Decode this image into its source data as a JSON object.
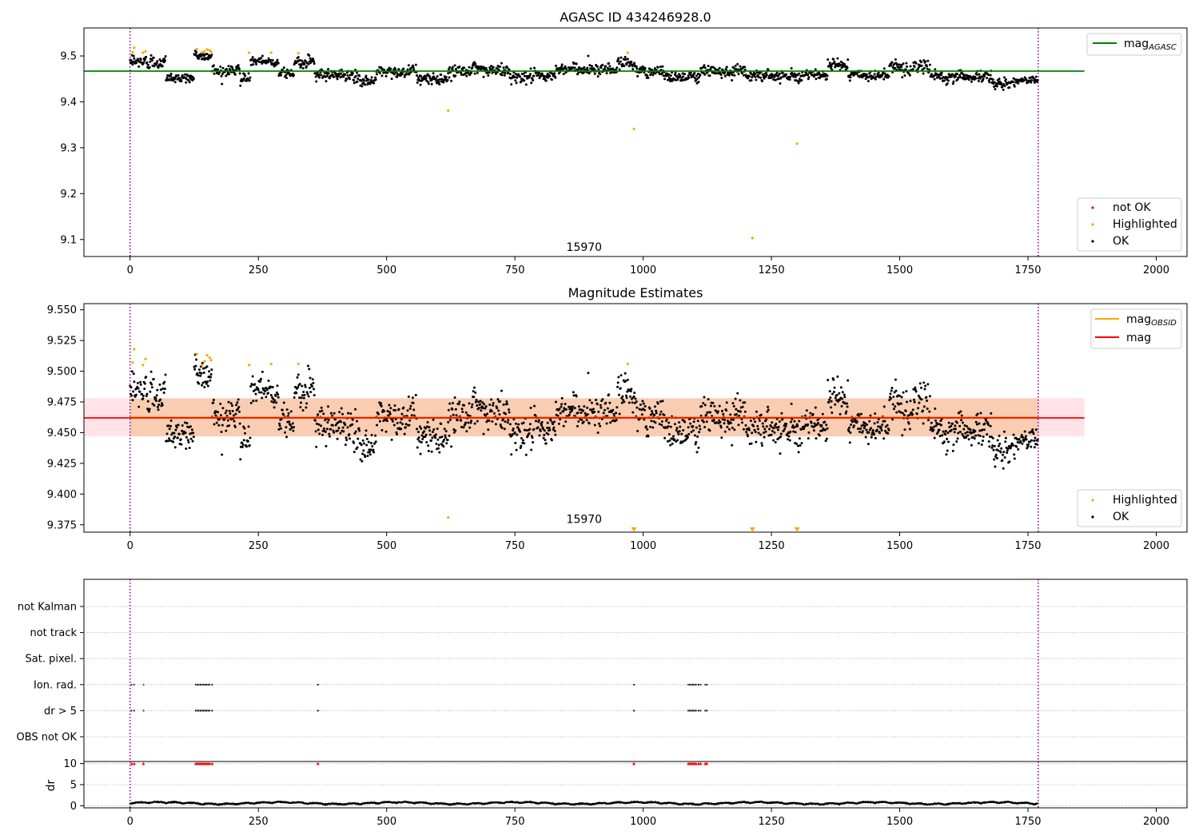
{
  "colors": {
    "ok": "#000000",
    "highlighted": "#ffa500",
    "not_ok": "#ff0000",
    "mag_agasc": "#008000",
    "mag": "#ff0000",
    "mag_obsid": "#ffa500",
    "band_fill": "#ffc0cb",
    "band_inner": "#f7c9a8",
    "obs_boundary": "#800080",
    "grid": "#b0b0b0"
  },
  "figure_title": "AGASC ID 434246928.0",
  "chart_data": [
    {
      "type": "scatter",
      "title": "AGASC ID 434246928.0",
      "xlim": [
        -90,
        2060
      ],
      "ylim": [
        9.063,
        9.561
      ],
      "xticks": [
        0,
        250,
        500,
        750,
        1000,
        1250,
        1500,
        1750,
        2000
      ],
      "xtick_labels": [
        "0",
        "250",
        "500",
        "750",
        "1000",
        "1250",
        "1500",
        "1750",
        "2000"
      ],
      "yticks": [
        9.1,
        9.2,
        9.3,
        9.4,
        9.5
      ],
      "ytick_labels": [
        "9.1",
        "9.2",
        "9.3",
        "9.4",
        "9.5"
      ],
      "obs_boundaries": [
        0,
        1770
      ],
      "obs_label": {
        "text": "15970",
        "x": 885,
        "y": 9.075
      },
      "lines": [
        {
          "name": "mag_AGASC",
          "label_main": "mag",
          "label_sub": "AGASC",
          "y": 9.467,
          "x": [
            -90,
            1860
          ],
          "color_key": "mag_agasc"
        }
      ],
      "ok_series": {
        "n": 1770,
        "segments": [
          {
            "x": [
              0,
              70
            ],
            "mean": 9.487,
            "spread": 0.012
          },
          {
            "x": [
              70,
              125
            ],
            "mean": 9.452,
            "spread": 0.009
          },
          {
            "x": [
              125,
              160
            ],
            "mean": 9.5,
            "spread": 0.008
          },
          {
            "x": [
              160,
              215
            ],
            "mean": 9.468,
            "spread": 0.01
          },
          {
            "x": [
              215,
              235
            ],
            "mean": 9.45,
            "spread": 0.008
          },
          {
            "x": [
              235,
              290
            ],
            "mean": 9.488,
            "spread": 0.007
          },
          {
            "x": [
              290,
              320
            ],
            "mean": 9.463,
            "spread": 0.008
          },
          {
            "x": [
              320,
              360
            ],
            "mean": 9.487,
            "spread": 0.01
          },
          {
            "x": [
              360,
              440
            ],
            "mean": 9.458,
            "spread": 0.009
          },
          {
            "x": [
              440,
              480
            ],
            "mean": 9.446,
            "spread": 0.009
          },
          {
            "x": [
              480,
              560
            ],
            "mean": 9.466,
            "spread": 0.01
          },
          {
            "x": [
              560,
              620
            ],
            "mean": 9.45,
            "spread": 0.009
          },
          {
            "x": [
              620,
              740
            ],
            "mean": 9.468,
            "spread": 0.011
          },
          {
            "x": [
              740,
              830
            ],
            "mean": 9.455,
            "spread": 0.01
          },
          {
            "x": [
              830,
              950
            ],
            "mean": 9.472,
            "spread": 0.011
          },
          {
            "x": [
              950,
              985
            ],
            "mean": 9.485,
            "spread": 0.01
          },
          {
            "x": [
              985,
              1040
            ],
            "mean": 9.466,
            "spread": 0.012
          },
          {
            "x": [
              1040,
              1110
            ],
            "mean": 9.455,
            "spread": 0.009
          },
          {
            "x": [
              1110,
              1200
            ],
            "mean": 9.468,
            "spread": 0.01
          },
          {
            "x": [
              1200,
              1360
            ],
            "mean": 9.458,
            "spread": 0.009
          },
          {
            "x": [
              1360,
              1400
            ],
            "mean": 9.48,
            "spread": 0.01
          },
          {
            "x": [
              1400,
              1480
            ],
            "mean": 9.458,
            "spread": 0.009
          },
          {
            "x": [
              1480,
              1560
            ],
            "mean": 9.475,
            "spread": 0.012
          },
          {
            "x": [
              1560,
              1680
            ],
            "mean": 9.455,
            "spread": 0.01
          },
          {
            "x": [
              1680,
              1725
            ],
            "mean": 9.44,
            "spread": 0.009
          },
          {
            "x": [
              1725,
              1770
            ],
            "mean": 9.448,
            "spread": 0.007
          }
        ]
      },
      "highlighted": {
        "x": [
          5,
          8,
          25,
          30,
          130,
          140,
          145,
          150,
          155,
          158,
          232,
          275,
          328,
          620,
          970,
          982,
          1213,
          1300
        ],
        "y": [
          9.508,
          9.518,
          9.507,
          9.51,
          9.515,
          9.508,
          9.51,
          9.514,
          9.512,
          9.509,
          9.507,
          9.507,
          9.506,
          9.381,
          9.507,
          9.341,
          9.103,
          9.309
        ]
      },
      "legend_lines": [
        {
          "label_main": "mag",
          "label_sub": "AGASC",
          "color_key": "mag_agasc"
        }
      ],
      "legend_points": [
        {
          "label": "not OK",
          "color_key": "not_ok"
        },
        {
          "label": "Highlighted",
          "color_key": "highlighted"
        },
        {
          "label": "OK",
          "color_key": "ok"
        }
      ]
    },
    {
      "type": "scatter",
      "title": "Magnitude Estimates",
      "xlim": [
        -90,
        2060
      ],
      "ylim": [
        9.369,
        9.555
      ],
      "xticks": [
        0,
        250,
        500,
        750,
        1000,
        1250,
        1500,
        1750,
        2000
      ],
      "xtick_labels": [
        "0",
        "250",
        "500",
        "750",
        "1000",
        "1250",
        "1500",
        "1750",
        "2000"
      ],
      "yticks": [
        9.375,
        9.4,
        9.425,
        9.45,
        9.475,
        9.5,
        9.525,
        9.55
      ],
      "ytick_labels": [
        "9.375",
        "9.400",
        "9.425",
        "9.450",
        "9.475",
        "9.500",
        "9.525",
        "9.550"
      ],
      "obs_boundaries": [
        0,
        1770
      ],
      "obs_label": {
        "text": "15970",
        "x": 885,
        "y": 9.3765
      },
      "band": {
        "x": [
          -90,
          1860
        ],
        "y": [
          9.447,
          9.478
        ],
        "color_key": "band_fill"
      },
      "band_inner": {
        "x": [
          0,
          1770
        ],
        "y": [
          9.447,
          9.478
        ],
        "color_key": "band_inner"
      },
      "lines": [
        {
          "name": "mag_OBSID",
          "label_main": "mag",
          "label_sub": "OBSID",
          "y": 9.4625,
          "x": [
            0,
            1770
          ],
          "color_key": "mag_obsid"
        },
        {
          "name": "mag",
          "label_main": "mag",
          "label_sub": "",
          "y": 9.462,
          "x": [
            -90,
            1860
          ],
          "color_key": "mag"
        }
      ],
      "ok_series": {
        "n": 1770,
        "segments": [
          {
            "x": [
              0,
              70
            ],
            "mean": 9.483,
            "spread": 0.014
          },
          {
            "x": [
              70,
              125
            ],
            "mean": 9.449,
            "spread": 0.011
          },
          {
            "x": [
              125,
              160
            ],
            "mean": 9.498,
            "spread": 0.011
          },
          {
            "x": [
              160,
              215
            ],
            "mean": 9.464,
            "spread": 0.011
          },
          {
            "x": [
              215,
              235
            ],
            "mean": 9.443,
            "spread": 0.008
          },
          {
            "x": [
              235,
              290
            ],
            "mean": 9.484,
            "spread": 0.009
          },
          {
            "x": [
              290,
              320
            ],
            "mean": 9.46,
            "spread": 0.01
          },
          {
            "x": [
              320,
              360
            ],
            "mean": 9.485,
            "spread": 0.012
          },
          {
            "x": [
              360,
              440
            ],
            "mean": 9.455,
            "spread": 0.011
          },
          {
            "x": [
              440,
              480
            ],
            "mean": 9.44,
            "spread": 0.01
          },
          {
            "x": [
              480,
              560
            ],
            "mean": 9.463,
            "spread": 0.012
          },
          {
            "x": [
              560,
              620
            ],
            "mean": 9.447,
            "spread": 0.01
          },
          {
            "x": [
              620,
              740
            ],
            "mean": 9.465,
            "spread": 0.013
          },
          {
            "x": [
              740,
              830
            ],
            "mean": 9.451,
            "spread": 0.011
          },
          {
            "x": [
              830,
              950
            ],
            "mean": 9.468,
            "spread": 0.012
          },
          {
            "x": [
              950,
              985
            ],
            "mean": 9.483,
            "spread": 0.012
          },
          {
            "x": [
              985,
              1040
            ],
            "mean": 9.463,
            "spread": 0.014
          },
          {
            "x": [
              1040,
              1110
            ],
            "mean": 9.452,
            "spread": 0.011
          },
          {
            "x": [
              1110,
              1200
            ],
            "mean": 9.465,
            "spread": 0.012
          },
          {
            "x": [
              1200,
              1360
            ],
            "mean": 9.455,
            "spread": 0.011
          },
          {
            "x": [
              1360,
              1400
            ],
            "mean": 9.478,
            "spread": 0.012
          },
          {
            "x": [
              1400,
              1480
            ],
            "mean": 9.455,
            "spread": 0.01
          },
          {
            "x": [
              1480,
              1560
            ],
            "mean": 9.473,
            "spread": 0.014
          },
          {
            "x": [
              1560,
              1680
            ],
            "mean": 9.452,
            "spread": 0.011
          },
          {
            "x": [
              1680,
              1725
            ],
            "mean": 9.436,
            "spread": 0.01
          },
          {
            "x": [
              1725,
              1770
            ],
            "mean": 9.445,
            "spread": 0.008
          }
        ]
      },
      "highlighted": {
        "x": [
          5,
          8,
          25,
          30,
          130,
          140,
          145,
          150,
          155,
          158,
          232,
          275,
          328,
          620,
          970
        ],
        "y": [
          9.507,
          9.518,
          9.505,
          9.51,
          9.514,
          9.505,
          9.508,
          9.513,
          9.511,
          9.509,
          9.505,
          9.506,
          9.506,
          9.381,
          9.506
        ]
      },
      "off_scale_markers": {
        "x": [
          982,
          1213,
          1300
        ],
        "color_key": "highlighted"
      },
      "legend_lines": [
        {
          "label_main": "mag",
          "label_sub": "OBSID",
          "color_key": "mag_obsid"
        },
        {
          "label_main": "mag",
          "label_sub": "",
          "color_key": "mag"
        }
      ],
      "legend_points": [
        {
          "label": "Highlighted",
          "color_key": "highlighted"
        },
        {
          "label": "OK",
          "color_key": "ok"
        }
      ]
    },
    {
      "type": "scatter",
      "title": "",
      "xlim": [
        -90,
        2060
      ],
      "obs_boundaries": [
        0,
        1770
      ],
      "xticks": [
        0,
        250,
        500,
        750,
        1000,
        1250,
        1500,
        1750,
        2000
      ],
      "xtick_labels": [
        "0",
        "250",
        "500",
        "750",
        "1000",
        "1250",
        "1500",
        "1750",
        "2000"
      ],
      "flag_categories": [
        "not Kalman",
        "not track",
        "Sat. pixel.",
        "Ion. rad.",
        "dr > 5",
        "OBS not OK"
      ],
      "flag_points_x": [
        3,
        8,
        26,
        128,
        131,
        134,
        137,
        140,
        143,
        146,
        149,
        152,
        155,
        160,
        366,
        982,
        1088,
        1091,
        1094,
        1097,
        1100,
        1103,
        1108,
        1112,
        1121,
        1124
      ],
      "flag_rows_with_points": [
        "Ion. rad.",
        "dr > 5"
      ],
      "dr": {
        "ylabel": "dr",
        "ylim": [
          -0.5,
          10.5
        ],
        "yticks": [
          0,
          5,
          10
        ],
        "ytick_labels": [
          "0",
          "5",
          "10"
        ],
        "clip_marker_y": 10,
        "clip_marker_color_key": "not_ok",
        "n": 1770,
        "baseline": 0.45,
        "amplitude": 0.35
      }
    }
  ]
}
